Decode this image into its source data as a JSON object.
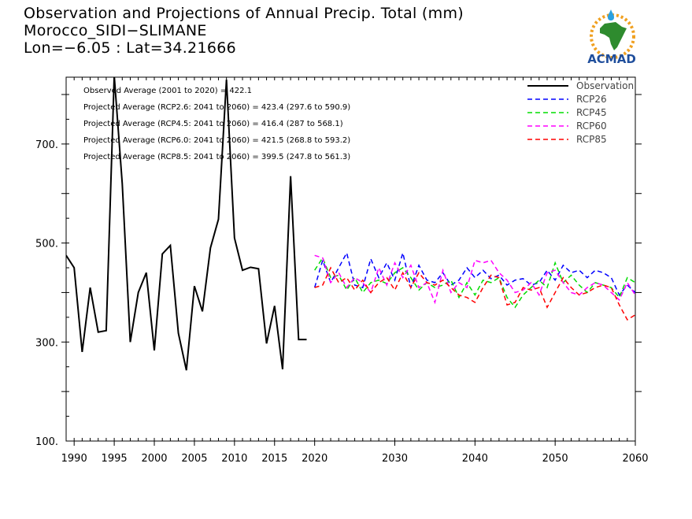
{
  "title": {
    "line1": "Observation and Projections of Annual Precip. Total (mm)",
    "line2": "Morocco_SIDI−SLIMANE",
    "line3": "Lon=−6.05 : Lat=34.21666"
  },
  "logo": {
    "text": "ACMAD",
    "icon": "africa-map-sun-logo"
  },
  "annotations": [
    "Observed Average (2001 to 2020) = 422.1",
    "Projected Average (RCP2.6: 2041 to 2060) = 423.4 (297.6 to 590.9)",
    "Projected Average (RCP4.5: 2041 to 2060) = 416.4 (287 to 568.1)",
    "Projected Average (RCP6.0: 2041 to 2060) = 421.5 (268.8 to 593.2)",
    "Projected Average (RCP8.5: 2041 to 2060) = 399.5 (247.8 to 561.3)"
  ],
  "chart_data": {
    "type": "line",
    "xlim": [
      1989,
      2060
    ],
    "ylim": [
      100,
      835
    ],
    "x_ticks": [
      {
        "value": 1990,
        "label": "1990"
      },
      {
        "value": 1995,
        "label": "1995"
      },
      {
        "value": 2000,
        "label": "2000"
      },
      {
        "value": 2005,
        "label": "2005"
      },
      {
        "value": 2010,
        "label": "2010"
      },
      {
        "value": 2015,
        "label": "2015"
      },
      {
        "value": 2020,
        "label": "2020"
      },
      {
        "value": 2030,
        "label": "2030"
      },
      {
        "value": 2040,
        "label": "2040"
      },
      {
        "value": 2050,
        "label": "2050"
      },
      {
        "value": 2060,
        "label": "2060"
      }
    ],
    "y_ticks": [
      {
        "value": 100,
        "label": "100."
      },
      {
        "value": 300,
        "label": "300."
      },
      {
        "value": 500,
        "label": "500."
      },
      {
        "value": 700,
        "label": "700."
      }
    ],
    "series": [
      {
        "name": "Observation",
        "color": "#000000",
        "dash": "solid",
        "x": [
          1989,
          1990,
          1991,
          1992,
          1993,
          1994,
          1995,
          1996,
          1997,
          1998,
          1999,
          2000,
          2001,
          2002,
          2003,
          2004,
          2005,
          2006,
          2007,
          2008,
          2009,
          2010,
          2011,
          2012,
          2013,
          2014,
          2015,
          2016,
          2017,
          2018,
          2019
        ],
        "y": [
          475,
          450,
          280,
          410,
          320,
          323,
          838,
          620,
          300,
          400,
          440,
          283,
          478,
          495,
          318,
          243,
          413,
          362,
          490,
          548,
          830,
          510,
          445,
          451,
          448,
          297,
          373,
          245,
          635,
          305,
          305
        ]
      },
      {
        "name": "RCP26",
        "color": "#0000ff",
        "dash": "6,4",
        "x": [
          2020,
          2021,
          2022,
          2023,
          2024,
          2025,
          2026,
          2027,
          2028,
          2029,
          2030,
          2031,
          2032,
          2033,
          2034,
          2035,
          2036,
          2037,
          2038,
          2039,
          2040,
          2041,
          2042,
          2043,
          2044,
          2045,
          2046,
          2047,
          2048,
          2049,
          2050,
          2051,
          2052,
          2053,
          2054,
          2055,
          2056,
          2057,
          2058,
          2059,
          2060
        ],
        "y": [
          410,
          465,
          420,
          450,
          480,
          415,
          410,
          468,
          430,
          460,
          425,
          480,
          410,
          455,
          425,
          420,
          440,
          415,
          425,
          450,
          430,
          445,
          428,
          435,
          415,
          425,
          428,
          415,
          420,
          445,
          425,
          455,
          440,
          445,
          430,
          445,
          440,
          430,
          395,
          415,
          400
        ]
      },
      {
        "name": "RCP45",
        "color": "#00dd00",
        "dash": "6,4",
        "x": [
          2020,
          2021,
          2022,
          2023,
          2024,
          2025,
          2026,
          2027,
          2028,
          2029,
          2030,
          2031,
          2032,
          2033,
          2034,
          2035,
          2036,
          2037,
          2038,
          2039,
          2040,
          2041,
          2042,
          2043,
          2044,
          2045,
          2046,
          2047,
          2048,
          2049,
          2050,
          2051,
          2052,
          2053,
          2054,
          2055,
          2056,
          2057,
          2058,
          2059,
          2060
        ],
        "y": [
          445,
          470,
          430,
          435,
          405,
          430,
          400,
          420,
          425,
          418,
          440,
          450,
          430,
          405,
          420,
          410,
          415,
          425,
          390,
          420,
          395,
          425,
          420,
          430,
          390,
          370,
          395,
          410,
          425,
          410,
          460,
          420,
          435,
          415,
          400,
          420,
          415,
          410,
          390,
          430,
          420
        ]
      },
      {
        "name": "RCP60",
        "color": "#ff00ff",
        "dash": "6,4",
        "x": [
          2020,
          2021,
          2022,
          2023,
          2024,
          2025,
          2026,
          2027,
          2028,
          2029,
          2030,
          2031,
          2032,
          2033,
          2034,
          2035,
          2036,
          2037,
          2038,
          2039,
          2040,
          2041,
          2042,
          2043,
          2044,
          2045,
          2046,
          2047,
          2048,
          2049,
          2050,
          2051,
          2052,
          2053,
          2054,
          2055,
          2056,
          2057,
          2058,
          2059,
          2060
        ],
        "y": [
          475,
          470,
          420,
          440,
          410,
          430,
          420,
          400,
          450,
          415,
          460,
          430,
          455,
          410,
          420,
          380,
          445,
          400,
          420,
          410,
          465,
          460,
          465,
          440,
          425,
          400,
          405,
          420,
          395,
          440,
          445,
          420,
          400,
          395,
          410,
          420,
          415,
          400,
          385,
          420,
          395
        ]
      },
      {
        "name": "RCP85",
        "color": "#ff0000",
        "dash": "6,4",
        "x": [
          2020,
          2021,
          2022,
          2023,
          2024,
          2025,
          2026,
          2027,
          2028,
          2029,
          2030,
          2031,
          2032,
          2033,
          2034,
          2035,
          2036,
          2037,
          2038,
          2039,
          2040,
          2041,
          2042,
          2043,
          2044,
          2045,
          2046,
          2047,
          2048,
          2049,
          2050,
          2051,
          2052,
          2053,
          2054,
          2055,
          2056,
          2057,
          2058,
          2059,
          2060
        ],
        "y": [
          410,
          415,
          450,
          420,
          430,
          405,
          425,
          400,
          420,
          430,
          405,
          440,
          410,
          440,
          420,
          415,
          425,
          410,
          395,
          390,
          380,
          410,
          435,
          430,
          375,
          380,
          410,
          405,
          410,
          370,
          400,
          430,
          410,
          395,
          400,
          410,
          415,
          410,
          375,
          345,
          355
        ]
      }
    ]
  }
}
